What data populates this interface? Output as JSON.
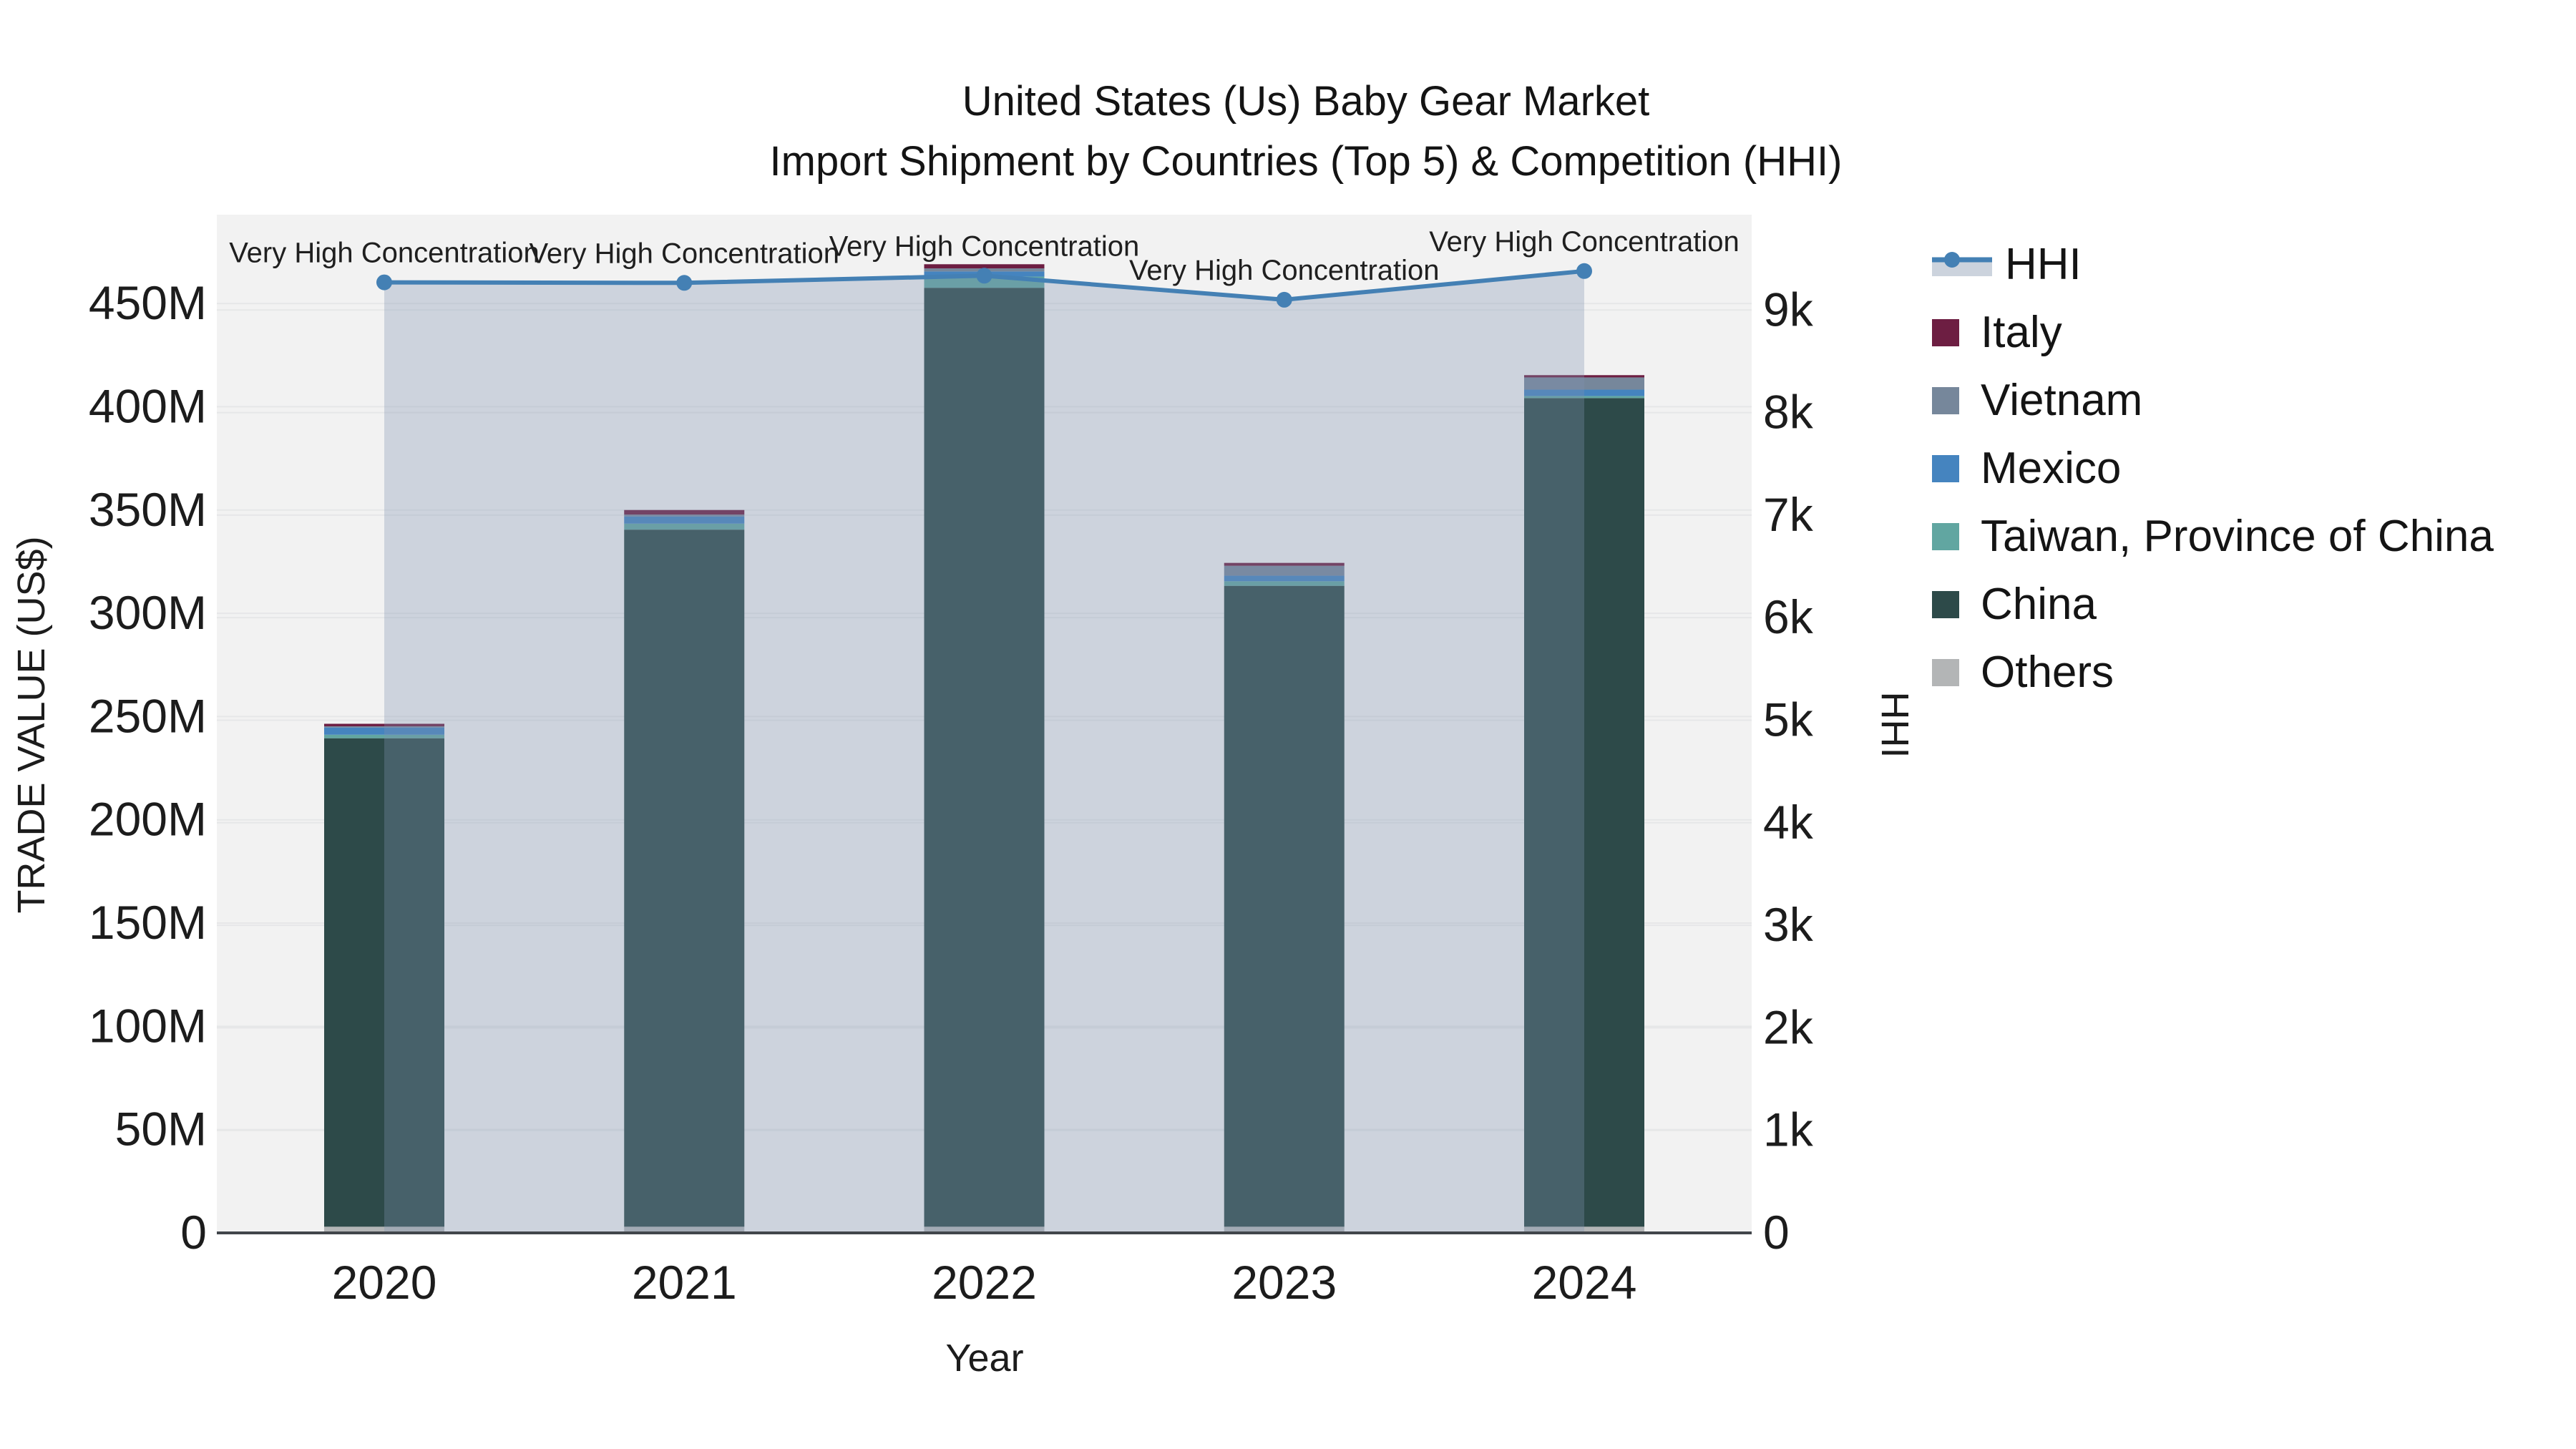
{
  "title": {
    "line1": "United States (Us) Baby Gear Market",
    "line2": "Import Shipment by Countries (Top 5) & Competition (HHI)"
  },
  "axes": {
    "x": {
      "title": "Year",
      "ticks": [
        "2020",
        "2021",
        "2022",
        "2023",
        "2024"
      ]
    },
    "y_left": {
      "title": "TRADE VALUE (US$)",
      "ticks": [
        "0",
        "50M",
        "100M",
        "150M",
        "200M",
        "250M",
        "300M",
        "350M",
        "400M",
        "450M"
      ],
      "tick_values_musd": [
        0,
        50,
        100,
        150,
        200,
        250,
        300,
        350,
        400,
        450
      ],
      "range_musd": [
        0,
        493
      ]
    },
    "y_right": {
      "title": "HHI",
      "ticks": [
        "0",
        "1k",
        "2k",
        "3k",
        "4k",
        "5k",
        "6k",
        "7k",
        "8k",
        "9k"
      ],
      "tick_values": [
        0,
        1000,
        2000,
        3000,
        4000,
        5000,
        6000,
        7000,
        8000,
        9000
      ],
      "range": [
        0,
        9930
      ]
    }
  },
  "legend": {
    "items": [
      {
        "label": "HHI",
        "type": "line",
        "color": "#4480b4",
        "fill": "#ccd3dd"
      },
      {
        "label": "Italy",
        "type": "swatch",
        "color": "#6d1e42"
      },
      {
        "label": "Vietnam",
        "type": "swatch",
        "color": "#76879b"
      },
      {
        "label": "Mexico",
        "type": "swatch",
        "color": "#4584bf"
      },
      {
        "label": "Taiwan, Province of China",
        "type": "swatch",
        "color": "#61a6a1"
      },
      {
        "label": "China",
        "type": "swatch",
        "color": "#2d4a49"
      },
      {
        "label": "Others",
        "type": "swatch",
        "color": "#b3b5b6"
      }
    ]
  },
  "annotation_text": "Very High Concentration",
  "chart_data": {
    "type": [
      "bar-stacked",
      "line"
    ],
    "title": "United States (Us) Baby Gear Market — Import Shipment by Countries (Top 5) & Competition (HHI)",
    "xlabel": "Year",
    "ylabel_left": "TRADE VALUE (US$)",
    "ylabel_right": "HHI",
    "categories": [
      "2020",
      "2021",
      "2022",
      "2023",
      "2024"
    ],
    "bar_units": "million US$",
    "stack_order_note": "series listed bottom-to-top of the stack",
    "series": [
      {
        "name": "Others",
        "color": "#b3b5b6",
        "values": [
          3.0,
          3.0,
          3.0,
          3.0,
          3.0
        ]
      },
      {
        "name": "China",
        "color": "#2d4a49",
        "values": [
          236.5,
          337.5,
          454.6,
          310.3,
          401.2
        ]
      },
      {
        "name": "Taiwan, Province of China",
        "color": "#61a6a1",
        "values": [
          1.7,
          2.9,
          5.4,
          2.2,
          1.0
        ]
      },
      {
        "name": "Mexico",
        "color": "#4584bf",
        "values": [
          3.5,
          3.5,
          2.5,
          2.7,
          3.1
        ]
      },
      {
        "name": "Vietnam",
        "color": "#76879b",
        "values": [
          0.6,
          0.9,
          1.5,
          4.8,
          5.9
        ]
      },
      {
        "name": "Italy",
        "color": "#6d1e42",
        "values": [
          1.2,
          2.2,
          2.0,
          1.4,
          1.1
        ]
      }
    ],
    "bar_totals_musd": [
      246.5,
      350.0,
      469.0,
      324.4,
      415.3
    ],
    "line_series": {
      "name": "HHI",
      "color": "#4480b4",
      "fill_color": "rgba(126,145,176,0.32)",
      "values": [
        9270,
        9265,
        9335,
        9100,
        9380
      ]
    },
    "annotations": [
      {
        "x": "2020",
        "text": "Very High Concentration"
      },
      {
        "x": "2021",
        "text": "Very High Concentration"
      },
      {
        "x": "2022",
        "text": "Very High Concentration"
      },
      {
        "x": "2023",
        "text": "Very High Concentration"
      },
      {
        "x": "2024",
        "text": "Very High Concentration"
      }
    ],
    "ylim_left_musd": [
      0,
      493
    ],
    "ylim_right": [
      0,
      9930
    ],
    "grid": true,
    "legend_position": "right"
  },
  "colors": {
    "plot_bg": "#f2f2f2",
    "grid": "#e6e7e8",
    "axis_line": "#41464b",
    "text": "#141414",
    "tick_text": "#1c1c1c"
  }
}
